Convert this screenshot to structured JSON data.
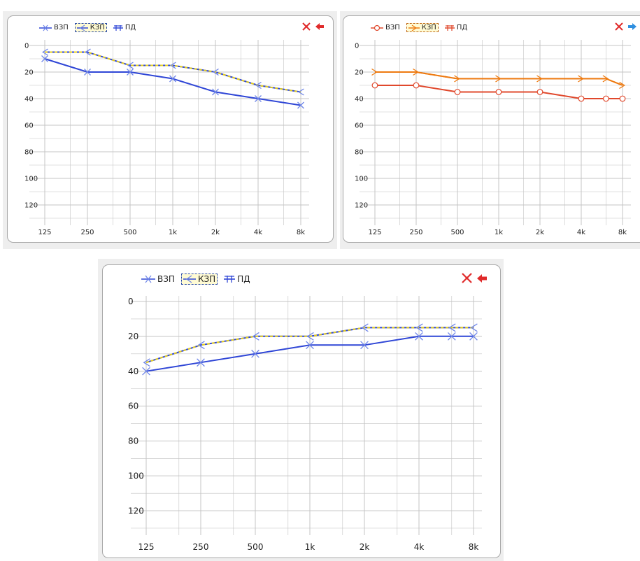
{
  "charts_meta": [
    {
      "legend": [
        "ВЗП",
        "КЗП",
        "ПД"
      ],
      "selected": 1,
      "action_icon": "arrow-left-icon",
      "close_icon": "close-icon"
    },
    {
      "legend": [
        "ВЗП",
        "КЗП",
        "ПД"
      ],
      "selected": 1,
      "action_icon": "arrow-right-icon",
      "close_icon": "close-icon"
    },
    {
      "legend": [
        "ВЗП",
        "КЗП",
        "ПД"
      ],
      "selected": 1,
      "action_icon": "arrow-left-icon",
      "close_icon": "close-icon"
    }
  ],
  "colors": {
    "blue": "#2f46d6",
    "blue_marker": "#6f86e8",
    "dash_yellow": "#e6cf1e",
    "red": "#e0482c",
    "orange": "#ee7a10",
    "close": "#e02a2a",
    "arrow_right": "#2f8fe0",
    "grid": "#c4c4c4"
  },
  "chart_data": [
    {
      "type": "line",
      "categories": [
        "125",
        "250",
        "500",
        "1k",
        "2k",
        "4k",
        "8k"
      ],
      "yticks": [
        "0",
        "20",
        "40",
        "60",
        "80",
        "100",
        "120"
      ],
      "ylim": [
        0,
        130
      ],
      "y_inverted": true,
      "series": [
        {
          "name": "ВЗП",
          "x": [
            0,
            1,
            2,
            3,
            4,
            5,
            6
          ],
          "values": [
            10,
            20,
            20,
            25,
            35,
            40,
            45
          ],
          "marker": "x",
          "line": "solid",
          "color": "blue"
        },
        {
          "name": "КЗП",
          "x": [
            0,
            1,
            2,
            3,
            4,
            5,
            6
          ],
          "values": [
            5,
            5,
            15,
            15,
            20,
            30,
            35
          ],
          "marker": "<",
          "line": "dashed",
          "color": "blue"
        }
      ]
    },
    {
      "type": "line",
      "categories": [
        "125",
        "250",
        "500",
        "1k",
        "2k",
        "4k",
        "8k"
      ],
      "yticks": [
        "0",
        "20",
        "40",
        "60",
        "80",
        "100",
        "120"
      ],
      "ylim": [
        0,
        130
      ],
      "y_inverted": true,
      "series": [
        {
          "name": "ВЗП",
          "x": [
            0,
            1,
            2,
            3,
            4,
            5,
            5.6,
            6
          ],
          "values": [
            30,
            30,
            35,
            35,
            35,
            40,
            40,
            40
          ],
          "marker": "o",
          "line": "solid",
          "color": "red"
        },
        {
          "name": "КЗП",
          "x": [
            0,
            1,
            2,
            3,
            4,
            5,
            5.6,
            6
          ],
          "values": [
            20,
            20,
            25,
            25,
            25,
            25,
            25,
            30
          ],
          "marker": ">",
          "line": "dashed",
          "color": "orange"
        }
      ]
    },
    {
      "type": "line",
      "categories": [
        "125",
        "250",
        "500",
        "1k",
        "2k",
        "4k",
        "8k"
      ],
      "yticks": [
        "0",
        "20",
        "40",
        "60",
        "80",
        "100",
        "120"
      ],
      "ylim": [
        0,
        130
      ],
      "y_inverted": true,
      "series": [
        {
          "name": "ВЗП",
          "x": [
            0,
            1,
            2,
            3,
            4,
            5,
            5.6,
            6
          ],
          "values": [
            40,
            35,
            30,
            25,
            25,
            20,
            20,
            20
          ],
          "marker": "x",
          "line": "solid",
          "color": "blue"
        },
        {
          "name": "КЗП",
          "x": [
            0,
            1,
            2,
            3,
            4,
            5,
            5.6,
            6
          ],
          "values": [
            35,
            25,
            20,
            20,
            15,
            15,
            15,
            15
          ],
          "marker": "<",
          "line": "dashed",
          "color": "blue"
        }
      ]
    }
  ]
}
